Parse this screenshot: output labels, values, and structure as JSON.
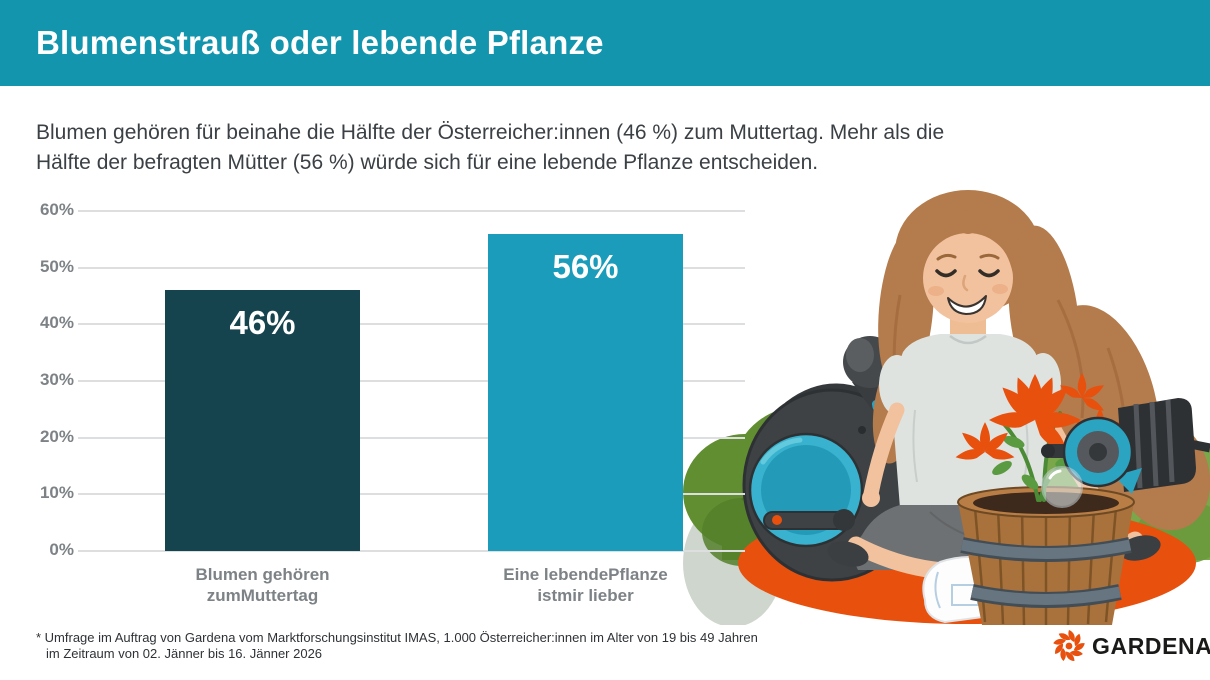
{
  "header": {
    "title": "Blumenstrauß oder lebende Pflanze"
  },
  "intro": {
    "lines": [
      "Blumen gehören für beinahe die Hälfte der Österreicher:innen (46 %) zum Muttertag. Mehr als die",
      "Hälfte der befragten Mütter (56 %) würde sich für eine lebende Pflanze entscheiden."
    ]
  },
  "chart_data": {
    "type": "bar",
    "categories": [
      "Blumen gehören\nzumMuttertag",
      "Eine lebendePflanze\nistmir lieber"
    ],
    "values": [
      46,
      56
    ],
    "value_labels": [
      "46%",
      "56%"
    ],
    "bar_colors": [
      "#15434e",
      "#1b9cba"
    ],
    "y_ticks": [
      "0%",
      "10%",
      "20%",
      "30%",
      "40%",
      "50%",
      "60%"
    ],
    "ylim": [
      0,
      60
    ],
    "grid": true,
    "legend": null,
    "title": "",
    "xlabel": "",
    "ylabel": ""
  },
  "footnote": {
    "lines": [
      "* Umfrage im Auftrag von Gardena vom Marktforschungsinstitut IMAS, 1.000 Österreicher:innen im Alter von 19 bis 49 Jahren",
      "im Zeitraum von 02. Jänner bis 16. Jänner 2026"
    ]
  },
  "logo": {
    "text": "GARDENA"
  },
  "colors": {
    "header_bg": "#1295ad",
    "bar_dark": "#15434e",
    "bar_light": "#1b9cba",
    "accent_orange": "#e8500e"
  },
  "illustration": {
    "alt": "Frau im Schneidersitz mit Schlauchtrommel, Brause, Topfpflanze mit orangen Blumen, Büschen und orangem Teppich"
  }
}
